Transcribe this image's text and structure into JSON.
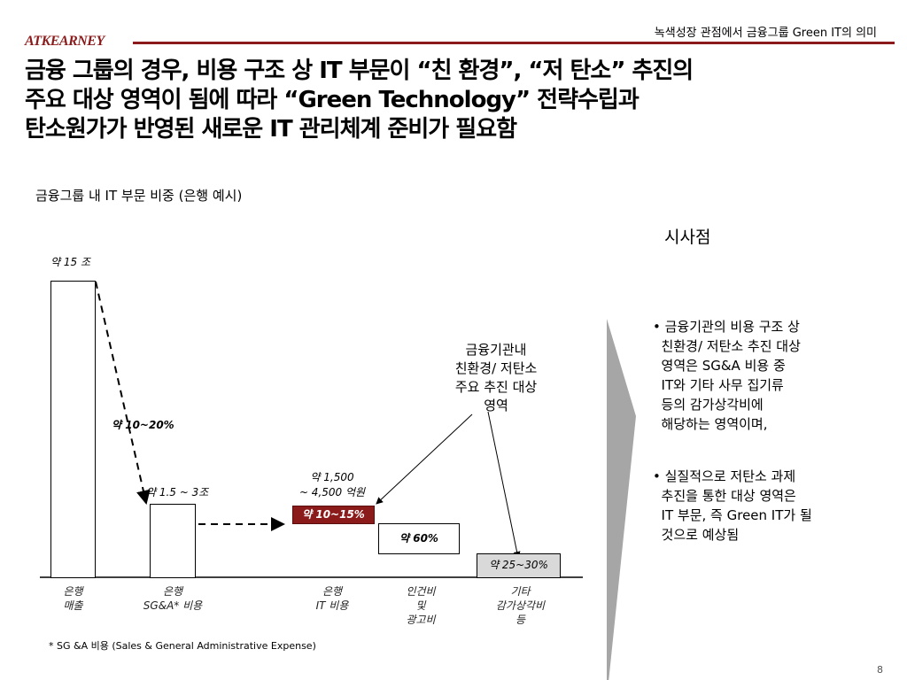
{
  "header": {
    "section_title": "녹색성장 관점에서 금융그룹 Green IT의 의미",
    "logo": "ATKEARNEY",
    "page_number": "8"
  },
  "title": {
    "lines": [
      "금융 그룹의 경우, 비용 구조 상 IT 부문이 “친 환경”, “저 탄소” 추진의",
      "주요 대상 영역이 됨에 따라 “Green Technology” 전략수립과",
      "탄소원가가 반영된 새로운 IT 관리체계 준비가 필요함"
    ]
  },
  "chart": {
    "subtitle": "금융그룹 내 IT 부문 비중 (은행 예시)",
    "labels": {
      "revenue": "약 15 조",
      "drop": "약 10~20%",
      "sga": "약 1.5 ~ 3조",
      "it_amount_1": "약 1,500",
      "it_amount_2": "~ 4,500 억원",
      "it_share": "약 10~15%",
      "personnel_share": "약 60%",
      "other_share": "약 25~30%"
    },
    "categories": [
      [
        "은행",
        "매출"
      ],
      [
        "은행",
        "SG&A* 비용"
      ],
      [
        "은행",
        "IT 비용"
      ],
      [
        "인건비",
        "및",
        "광고비"
      ],
      [
        "기타",
        "감가상각비",
        "등"
      ]
    ],
    "callout": [
      "금융기관내",
      "친환경/ 저탄소",
      "주요 추진 대상",
      "영역"
    ],
    "colors": {
      "it_bar": "#8b1a1a",
      "other_bar": "#d9d9d9",
      "arrow_chevron": "#a6a6a6"
    }
  },
  "implications": {
    "heading": "시사점",
    "bullets": [
      [
        "금융기관의 비용 구조 상",
        "친환경/ 저탄소 추진 대상",
        "영역은 SG&A 비용 중",
        "IT와 기타 사무 집기류",
        "등의 감가상각비에",
        "해당하는 영역이며,"
      ],
      [
        "실질적으로 저탄소 과제",
        "추진을 통한 대상 영역은",
        "IT 부문, 즉 Green IT가 될",
        "것으로 예상됨"
      ]
    ]
  },
  "footnote": "* SG &A 비용 (Sales & General Administrative Expense)"
}
